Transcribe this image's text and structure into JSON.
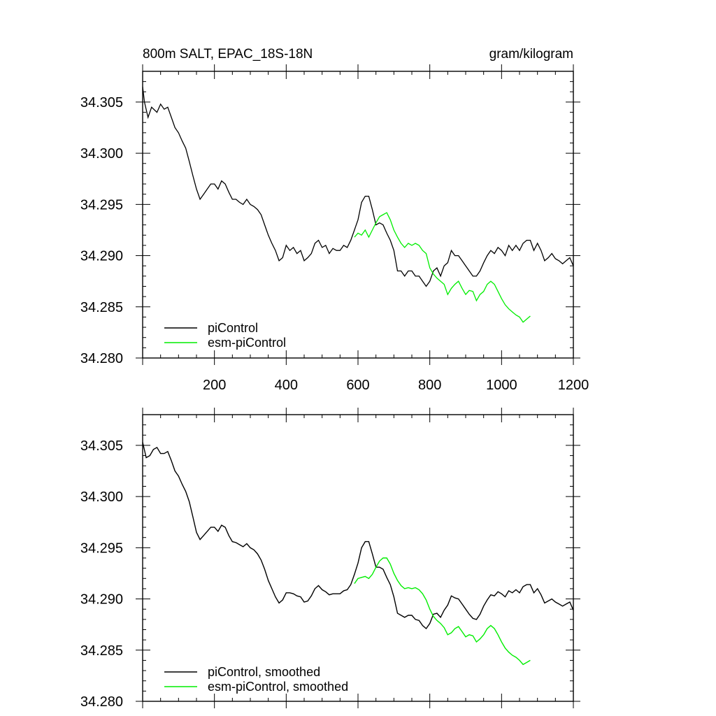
{
  "chart_data": [
    {
      "type": "line",
      "title": "800m SALT, EPAC_18S-18N",
      "units": "gram/kilogram",
      "xlim": [
        0,
        1200
      ],
      "ylim": [
        34.28,
        34.308
      ],
      "x_ticks": [
        200,
        400,
        600,
        800,
        1000,
        1200
      ],
      "x_tick_labels": [
        "200",
        "400",
        "600",
        "800",
        "1000",
        "1200"
      ],
      "y_ticks": [
        34.28,
        34.285,
        34.29,
        34.295,
        34.3,
        34.305
      ],
      "y_tick_labels": [
        "34.280",
        "34.285",
        "34.290",
        "34.295",
        "34.300",
        "34.305"
      ],
      "grid": false,
      "legend_position": "bottom-left",
      "series": [
        {
          "name": "piControl",
          "color": "#000000",
          "x": [
            0,
            5,
            15,
            25,
            40,
            50,
            60,
            70,
            80,
            90,
            100,
            110,
            120,
            130,
            140,
            150,
            160,
            170,
            180,
            190,
            200,
            210,
            220,
            230,
            240,
            250,
            260,
            270,
            280,
            290,
            300,
            310,
            320,
            330,
            340,
            350,
            360,
            370,
            380,
            390,
            400,
            410,
            420,
            430,
            440,
            450,
            460,
            470,
            480,
            490,
            500,
            510,
            520,
            530,
            540,
            550,
            560,
            570,
            580,
            590,
            600,
            610,
            620,
            630,
            640,
            650,
            660,
            670,
            680,
            690,
            700,
            710,
            720,
            730,
            740,
            750,
            760,
            770,
            780,
            790,
            800,
            810,
            820,
            830,
            840,
            850,
            860,
            870,
            880,
            890,
            900,
            910,
            920,
            930,
            940,
            950,
            960,
            970,
            980,
            990,
            1000,
            1010,
            1020,
            1030,
            1040,
            1050,
            1060,
            1070,
            1080,
            1090,
            1100,
            1110,
            1120,
            1130,
            1140,
            1150,
            1160,
            1170,
            1180,
            1190,
            1200
          ],
          "values": [
            34.3065,
            34.305,
            34.3035,
            34.3045,
            34.304,
            34.3048,
            34.3043,
            34.3045,
            34.3035,
            34.3025,
            34.302,
            34.3012,
            34.3005,
            34.2992,
            34.2978,
            34.2965,
            34.2955,
            34.296,
            34.2965,
            34.297,
            34.297,
            34.2965,
            34.2973,
            34.297,
            34.2962,
            34.2955,
            34.2955,
            34.2952,
            34.295,
            34.2955,
            34.295,
            34.2948,
            34.2945,
            34.294,
            34.293,
            34.292,
            34.2912,
            34.2905,
            34.2895,
            34.2898,
            34.291,
            34.2905,
            34.2908,
            34.2902,
            34.2905,
            34.2895,
            34.2898,
            34.2902,
            34.2912,
            34.2915,
            34.2908,
            34.291,
            34.2902,
            34.2907,
            34.2905,
            34.2905,
            34.291,
            34.2908,
            34.2915,
            34.2925,
            34.2935,
            34.2952,
            34.2958,
            34.2958,
            34.2945,
            34.293,
            34.2932,
            34.293,
            34.2922,
            34.2915,
            34.2905,
            34.2885,
            34.2885,
            34.288,
            34.2885,
            34.2885,
            34.288,
            34.288,
            34.2875,
            34.287,
            34.2875,
            34.2885,
            34.2888,
            34.288,
            34.289,
            34.2893,
            34.2905,
            34.29,
            34.29,
            34.2895,
            34.289,
            34.2885,
            34.288,
            34.288,
            34.2885,
            34.2893,
            34.29,
            34.2905,
            34.2902,
            34.2908,
            34.2905,
            34.29,
            34.291,
            34.2905,
            34.291,
            34.2905,
            34.2912,
            34.2915,
            34.2915,
            34.2905,
            34.2912,
            34.2905,
            34.2895,
            34.2898,
            34.2902,
            34.2897,
            34.2895,
            34.2892,
            34.2895,
            34.2898,
            34.289
          ]
        },
        {
          "name": "esm-piControl",
          "color": "#00ee00",
          "x": [
            590,
            600,
            610,
            620,
            630,
            640,
            650,
            660,
            670,
            680,
            690,
            700,
            710,
            720,
            730,
            740,
            750,
            760,
            770,
            780,
            790,
            800,
            810,
            820,
            830,
            840,
            850,
            860,
            870,
            880,
            890,
            900,
            910,
            920,
            930,
            940,
            950,
            960,
            970,
            980,
            990,
            1000,
            1010,
            1020,
            1030,
            1040,
            1050,
            1060,
            1070,
            1080
          ],
          "values": [
            34.2918,
            34.2922,
            34.292,
            34.2925,
            34.2918,
            34.2925,
            34.2932,
            34.2938,
            34.294,
            34.2942,
            34.2935,
            34.2925,
            34.2918,
            34.2912,
            34.2908,
            34.2912,
            34.291,
            34.2912,
            34.291,
            34.2905,
            34.2902,
            34.2888,
            34.2882,
            34.2878,
            34.2875,
            34.2872,
            34.2862,
            34.2868,
            34.2872,
            34.2875,
            34.2868,
            34.2862,
            34.2866,
            34.2865,
            34.2856,
            34.2862,
            34.2865,
            34.2872,
            34.2875,
            34.2872,
            34.2865,
            34.2858,
            34.2852,
            34.2848,
            34.2845,
            34.2842,
            34.284,
            34.2835,
            34.2838,
            34.2841
          ]
        }
      ]
    },
    {
      "type": "line",
      "xlim": [
        0,
        1200
      ],
      "ylim": [
        34.28,
        34.308
      ],
      "y_ticks": [
        34.28,
        34.285,
        34.29,
        34.295,
        34.3,
        34.305
      ],
      "y_tick_labels": [
        "34.280",
        "34.285",
        "34.290",
        "34.295",
        "34.300",
        "34.305"
      ],
      "grid": false,
      "legend_position": "bottom-left",
      "series": [
        {
          "name": "piControl, smoothed",
          "color": "#000000",
          "x": [
            0,
            10,
            20,
            30,
            40,
            50,
            60,
            70,
            80,
            90,
            100,
            110,
            120,
            130,
            140,
            150,
            160,
            170,
            180,
            190,
            200,
            210,
            220,
            230,
            240,
            250,
            260,
            270,
            280,
            290,
            300,
            310,
            320,
            330,
            340,
            350,
            360,
            370,
            380,
            390,
            400,
            410,
            420,
            430,
            440,
            450,
            460,
            470,
            480,
            490,
            500,
            510,
            520,
            530,
            540,
            550,
            560,
            570,
            580,
            590,
            600,
            610,
            620,
            630,
            640,
            650,
            660,
            670,
            680,
            690,
            700,
            710,
            720,
            730,
            740,
            750,
            760,
            770,
            780,
            790,
            800,
            810,
            820,
            830,
            840,
            850,
            860,
            870,
            880,
            890,
            900,
            910,
            920,
            930,
            940,
            950,
            960,
            970,
            980,
            990,
            1000,
            1010,
            1020,
            1030,
            1040,
            1050,
            1060,
            1070,
            1080,
            1090,
            1100,
            1110,
            1120,
            1130,
            1140,
            1150,
            1160,
            1170,
            1180,
            1190,
            1200
          ],
          "values": [
            34.3053,
            34.3038,
            34.304,
            34.3046,
            34.3048,
            34.3042,
            34.3042,
            34.3044,
            34.3035,
            34.3025,
            34.302,
            34.3012,
            34.3005,
            34.2995,
            34.298,
            34.2965,
            34.2958,
            34.2962,
            34.2966,
            34.297,
            34.297,
            34.2966,
            34.2972,
            34.297,
            34.2962,
            34.2956,
            34.2955,
            34.2953,
            34.2951,
            34.2954,
            34.295,
            34.2948,
            34.2944,
            34.2938,
            34.2929,
            34.2918,
            34.291,
            34.2902,
            34.2896,
            34.2899,
            34.2906,
            34.2906,
            34.2905,
            34.2903,
            34.2902,
            34.2897,
            34.2898,
            34.2903,
            34.291,
            34.2913,
            34.2909,
            34.2907,
            34.2904,
            34.2905,
            34.2905,
            34.2905,
            34.2908,
            34.2909,
            34.2914,
            34.2924,
            34.2935,
            34.295,
            34.2956,
            34.2956,
            34.2944,
            34.2931,
            34.2931,
            34.2929,
            34.2921,
            34.2914,
            34.2902,
            34.2886,
            34.2884,
            34.2882,
            34.2884,
            34.2884,
            34.288,
            34.2879,
            34.2874,
            34.2871,
            34.2876,
            34.2885,
            34.2886,
            34.2882,
            34.2889,
            34.2894,
            34.2903,
            34.2901,
            34.29,
            34.2895,
            34.289,
            34.2885,
            34.2881,
            34.288,
            34.2885,
            34.2893,
            34.2899,
            34.2904,
            34.2903,
            34.2907,
            34.2905,
            34.2902,
            34.2908,
            34.2906,
            34.2909,
            34.2906,
            34.2912,
            34.2914,
            34.2914,
            34.2906,
            34.291,
            34.2904,
            34.2896,
            34.2898,
            34.29,
            34.2897,
            34.2895,
            34.2893,
            34.2895,
            34.2897,
            34.2889
          ]
        },
        {
          "name": "esm-piControl, smoothed",
          "color": "#00ee00",
          "x": [
            590,
            600,
            610,
            620,
            630,
            640,
            650,
            660,
            670,
            680,
            690,
            700,
            710,
            720,
            730,
            740,
            750,
            760,
            770,
            780,
            790,
            800,
            810,
            820,
            830,
            840,
            850,
            860,
            870,
            880,
            890,
            900,
            910,
            920,
            930,
            940,
            950,
            960,
            970,
            980,
            990,
            1000,
            1010,
            1020,
            1030,
            1040,
            1050,
            1060,
            1070,
            1080
          ],
          "values": [
            34.2915,
            34.292,
            34.2921,
            34.2922,
            34.292,
            34.2924,
            34.2931,
            34.2937,
            34.294,
            34.294,
            34.2934,
            34.2925,
            34.2918,
            34.2913,
            34.291,
            34.2911,
            34.291,
            34.2911,
            34.2909,
            34.2905,
            34.2899,
            34.289,
            34.2883,
            34.2879,
            34.2876,
            34.2872,
            34.2865,
            34.2867,
            34.2871,
            34.2873,
            34.2868,
            34.2863,
            34.2865,
            34.2864,
            34.2858,
            34.2861,
            34.2865,
            34.2871,
            34.2874,
            34.2871,
            34.2865,
            34.2858,
            34.2852,
            34.2848,
            34.2845,
            34.2843,
            34.284,
            34.2836,
            34.2838,
            34.284
          ]
        }
      ]
    }
  ]
}
